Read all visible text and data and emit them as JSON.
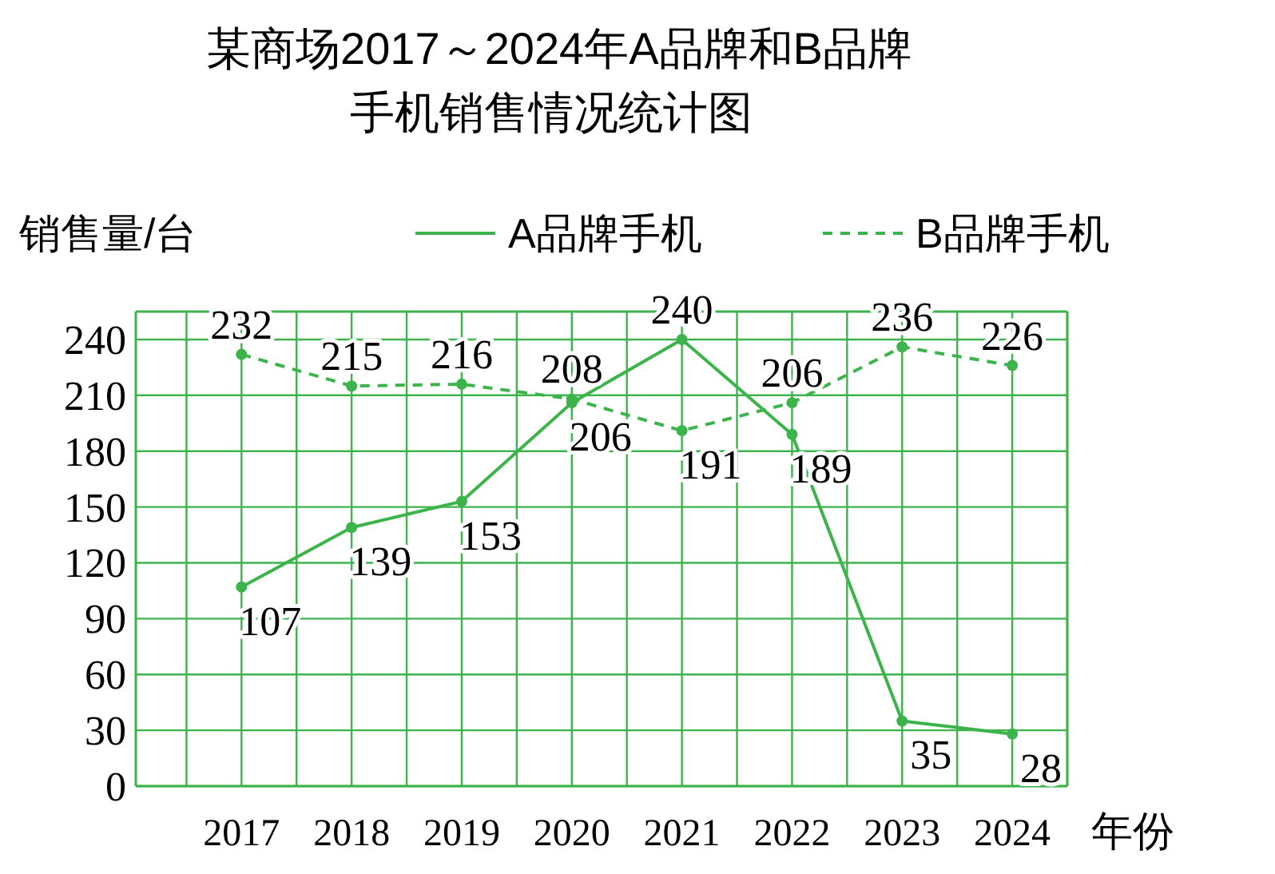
{
  "chart_data": {
    "type": "line",
    "title": "某商场2017～2024年A品牌和B品牌",
    "subtitle": "手机销售情况统计图",
    "xlabel": "年份",
    "ylabel": "销售量/台",
    "categories": [
      "2017",
      "2018",
      "2019",
      "2020",
      "2021",
      "2022",
      "2023",
      "2024"
    ],
    "series": [
      {
        "name": "A品牌手机",
        "color": "#3cb44b",
        "values": [
          107,
          139,
          153,
          206,
          240,
          189,
          35,
          28
        ],
        "line_style": "solid"
      },
      {
        "name": "B品牌手机",
        "color": "#3cb44b",
        "values": [
          232,
          215,
          216,
          208,
          191,
          206,
          236,
          226
        ],
        "line_style": "dashed"
      }
    ],
    "ylim": [
      0,
      255
    ],
    "yticks": [
      0,
      30,
      60,
      90,
      120,
      150,
      180,
      210,
      240
    ],
    "grid": true,
    "legend": "top",
    "marker": "circle",
    "data_labels": true
  }
}
